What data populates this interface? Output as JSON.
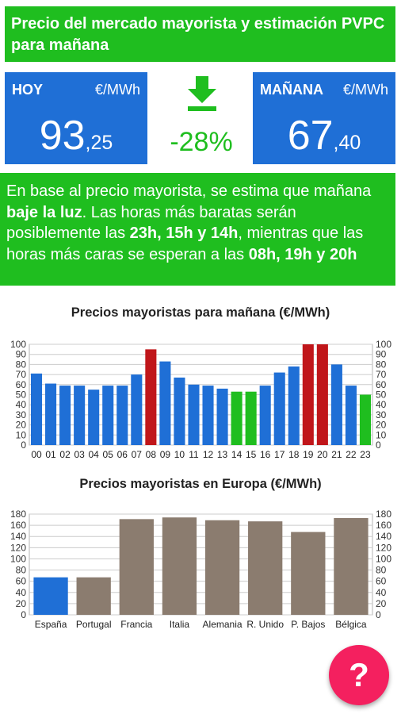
{
  "header": {
    "title": "Precio del mercado mayorista y estimación PVPC para mañana"
  },
  "today": {
    "label": "HOY",
    "unit": "€/MWh",
    "int": "93",
    "dec": ",25"
  },
  "tomorrow": {
    "label": "MAÑANA",
    "unit": "€/MWh",
    "int": "67",
    "dec": ",40"
  },
  "change": {
    "icon": "download-arrow-icon",
    "value": "-28%"
  },
  "estimate": {
    "t1": "En base al precio mayorista, se estima que mañana ",
    "b1": "baje la luz",
    "t2": ". Las horas más baratas serán posiblemente las ",
    "b2": "23h, 15h y 14h",
    "t3": ", mientras que las horas más caras se esperan a las ",
    "b3": "08h, 19h y 20h"
  },
  "colors": {
    "green": "#1fbe1f",
    "blue": "#1f6fd6",
    "red": "#c0161a",
    "grey": "#8b7c6f",
    "pink": "#f4205f"
  },
  "fab": {
    "label": "?"
  },
  "chart_data": [
    {
      "type": "bar",
      "title": "Precios mayoristas para mañana (€/MWh)",
      "categories": [
        "00",
        "01",
        "02",
        "03",
        "04",
        "05",
        "06",
        "07",
        "08",
        "09",
        "10",
        "11",
        "12",
        "13",
        "14",
        "15",
        "16",
        "17",
        "18",
        "19",
        "20",
        "21",
        "22",
        "23"
      ],
      "values": [
        71,
        61,
        59,
        59,
        55,
        59,
        59,
        70,
        95,
        83,
        67,
        60,
        59,
        56,
        53,
        53,
        59,
        72,
        78,
        100,
        100,
        80,
        59,
        50
      ],
      "bar_colors": [
        "blue",
        "blue",
        "blue",
        "blue",
        "blue",
        "blue",
        "blue",
        "blue",
        "red",
        "blue",
        "blue",
        "blue",
        "blue",
        "blue",
        "green",
        "green",
        "blue",
        "blue",
        "blue",
        "red",
        "red",
        "blue",
        "blue",
        "green"
      ],
      "ylim": [
        0,
        100
      ],
      "yticks": [
        0,
        10,
        20,
        30,
        40,
        50,
        60,
        70,
        80,
        90,
        100
      ],
      "grid": true
    },
    {
      "type": "bar",
      "title": "Precios mayoristas en Europa (€/MWh)",
      "categories": [
        "España",
        "Portugal",
        "Francia",
        "Italia",
        "Alemania",
        "R. Unido",
        "P. Bajos",
        "Bélgica"
      ],
      "values": [
        67,
        67,
        171,
        174,
        169,
        167,
        148,
        173
      ],
      "bar_colors": [
        "blue",
        "grey",
        "grey",
        "grey",
        "grey",
        "grey",
        "grey",
        "grey"
      ],
      "ylim": [
        0,
        180
      ],
      "yticks": [
        0,
        20,
        40,
        60,
        80,
        100,
        120,
        140,
        160,
        180
      ],
      "grid": true
    }
  ]
}
